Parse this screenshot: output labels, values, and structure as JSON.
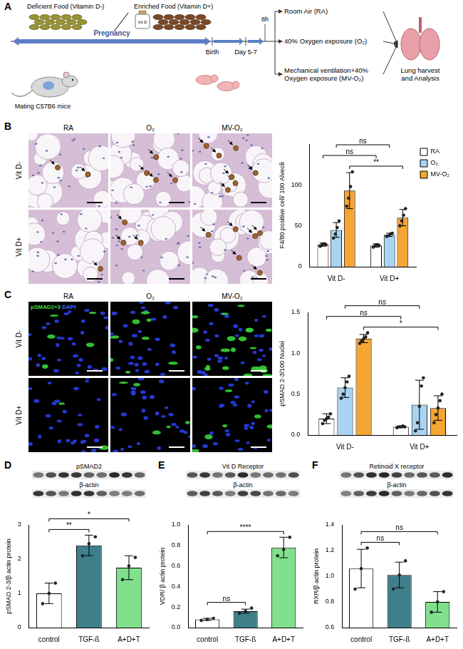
{
  "panel_labels": [
    "A",
    "B",
    "C",
    "D",
    "E",
    "F"
  ],
  "diagram": {
    "foods": [
      "Deficient Food (Vitamin D-)",
      "Enriched Food (Vitamin D+)"
    ],
    "supplement": "Vit D",
    "timeline": {
      "start": "Mating C57B6 mice",
      "period": "Pregnancy",
      "birth": "Birth",
      "day": "Day 5-7",
      "duration": "8h"
    },
    "exposures": [
      "Room Air (RA)",
      "40% Oxygen exposure (O₂)",
      "Mechanical ventilation+40% Oxygen exposure (MV-O₂)"
    ],
    "outcome": "Lung harvest and Analysis"
  },
  "micrographs": [
    {
      "columns": [
        "RA",
        "O₂",
        "MV-O₂"
      ],
      "rows": [
        "Vit D-",
        "Vit D+"
      ]
    },
    {
      "columns": [
        "RA",
        "O₂",
        "MV-O₂"
      ],
      "rows": [
        "Vit D-",
        "Vit D+"
      ],
      "stains": [
        {
          "text": "pSMAD2+3",
          "color": "#3ddc3d"
        },
        {
          "text": "DAPI",
          "color": "#4a6cff"
        }
      ]
    }
  ],
  "blots": [
    [
      "pSMAD2",
      "β-actin"
    ],
    [
      "Vit D Receptor",
      "β-actin"
    ],
    [
      "Retinoid X receptor",
      "β-actin"
    ]
  ],
  "chart_data": [
    {
      "type": "bar",
      "categories": [
        "Vit D-",
        "Vit D+"
      ],
      "y_label": "F4/80 positive cell/ 100 Alveoli",
      "ylim": [
        0,
        150
      ],
      "yticks": [
        0,
        50,
        100
      ],
      "grid": false,
      "legend": "right",
      "series": [
        {
          "name": "RA",
          "color": "#ffffff",
          "values": [
            27,
            26
          ],
          "errors": [
            2,
            2
          ],
          "points": [
            [
              25,
              27,
              28,
              27
            ],
            [
              24,
              26,
              27,
              26
            ]
          ]
        },
        {
          "name": "O₂",
          "color": "#a8d4f2",
          "values": [
            45,
            39
          ],
          "errors": [
            9,
            2
          ],
          "points": [
            [
              35,
              40,
              48,
              56
            ],
            [
              37,
              38,
              40,
              41
            ]
          ]
        },
        {
          "name": "MV-O₂",
          "color": "#f5a531",
          "values": [
            93,
            60
          ],
          "errors": [
            22,
            10
          ],
          "points": [
            [
              74,
              84,
              98,
              116
            ],
            [
              50,
              56,
              63,
              71
            ]
          ]
        }
      ],
      "annotations": [
        {
          "text": "**",
          "between": [
            [
              0,
              2
            ],
            [
              1,
              2
            ]
          ]
        },
        {
          "text": "ns",
          "between": [
            [
              0,
              0
            ],
            [
              1,
              0
            ]
          ]
        },
        {
          "text": "ns",
          "between": [
            [
              0,
              1
            ],
            [
              1,
              1
            ]
          ]
        }
      ]
    },
    {
      "type": "bar",
      "categories": [
        "Vit D-",
        "Vit D+"
      ],
      "y_label": "pSMAD 2-3/100 Nuclei",
      "ylim": [
        0,
        1.5
      ],
      "yticks": [
        {
          "value": 0,
          "label": "0.0"
        },
        0.5,
        {
          "value": 1,
          "label": "1.0"
        },
        1.5
      ],
      "grid": false,
      "series": [
        {
          "color": "#ffffff",
          "values": [
            0.2,
            0.1
          ],
          "errors": [
            0.06,
            0.01
          ],
          "points": [
            [
              0.14,
              0.18,
              0.2,
              0.22,
              0.26
            ],
            [
              0.09,
              0.1,
              0.1,
              0.11,
              0.1
            ]
          ]
        },
        {
          "color": "#a8d4f2",
          "values": [
            0.58,
            0.37
          ],
          "errors": [
            0.12,
            0.3
          ],
          "points": [
            [
              0.45,
              0.5,
              0.58,
              0.65,
              0.72
            ],
            [
              0.05,
              0.15,
              0.35,
              0.6,
              0.7
            ]
          ]
        },
        {
          "color": "#f5a531",
          "values": [
            1.18,
            0.33
          ],
          "errors": [
            0.05,
            0.15
          ],
          "points": [
            [
              1.12,
              1.15,
              1.18,
              1.2,
              1.25
            ],
            [
              0.15,
              0.25,
              0.33,
              0.42,
              0.5
            ]
          ]
        }
      ],
      "annotations": [
        {
          "text": "*",
          "between": [
            [
              0,
              2
            ],
            [
              1,
              2
            ]
          ]
        },
        {
          "text": "ns",
          "between": [
            [
              0,
              0
            ],
            [
              1,
              0
            ]
          ]
        },
        {
          "text": "ns",
          "between": [
            [
              0,
              1
            ],
            [
              1,
              1
            ]
          ]
        }
      ]
    },
    {
      "type": "bar",
      "categories": [
        "control",
        "TGF-ß",
        "A+D+T"
      ],
      "y_label": "pSMAD 2-3/β actin protein",
      "values": [
        1.0,
        2.4,
        1.75
      ],
      "colors": [
        "#ffffff",
        "#3f7f8a",
        "#80e08c"
      ],
      "errors": [
        0.3,
        0.3,
        0.35
      ],
      "points": [
        [
          0.7,
          1.0,
          1.3
        ],
        [
          2.1,
          2.45,
          2.65
        ],
        [
          1.4,
          1.8,
          2.05
        ]
      ],
      "ylim": [
        0,
        3
      ],
      "yticks": [
        0,
        1,
        2,
        3
      ],
      "grid": false,
      "annotations": [
        {
          "text": "**",
          "between": [
            [
              0,
              0
            ],
            [
              1,
              0
            ]
          ]
        },
        {
          "text": "*",
          "between": [
            [
              0,
              0
            ],
            [
              2,
              0
            ]
          ]
        }
      ]
    },
    {
      "type": "bar",
      "categories": [
        "control",
        "TGF-ß",
        "A+D+T"
      ],
      "y_label": "VDR/ β actin protein",
      "values": [
        0.08,
        0.16,
        0.78
      ],
      "colors": [
        "#ffffff",
        "#3f7f8a",
        "#80e08c"
      ],
      "errors": [
        0.01,
        0.02,
        0.1
      ],
      "points": [
        [
          0.07,
          0.08,
          0.09
        ],
        [
          0.14,
          0.16,
          0.19
        ],
        [
          0.7,
          0.76,
          0.88
        ]
      ],
      "ylim": [
        0,
        1
      ],
      "yticks": [
        {
          "value": 0,
          "label": "0.0"
        },
        0.2,
        0.4,
        0.6,
        0.8,
        {
          "value": 1,
          "label": "1.0"
        }
      ],
      "grid": false,
      "annotations": [
        {
          "text": "ns",
          "between": [
            [
              0,
              0
            ],
            [
              1,
              0
            ]
          ]
        },
        {
          "text": "****",
          "between": [
            [
              0,
              0
            ],
            [
              2,
              0
            ]
          ]
        }
      ]
    },
    {
      "type": "bar",
      "categories": [
        "control",
        "TGF-ß",
        "A+D+T"
      ],
      "y_label": "RXR/β actin protein",
      "values": [
        1.06,
        1.01,
        0.8
      ],
      "colors": [
        "#ffffff",
        "#3f7f8a",
        "#80e08c"
      ],
      "errors": [
        0.15,
        0.1,
        0.08
      ],
      "points": [
        [
          0.9,
          1.06,
          1.22
        ],
        [
          0.9,
          1.01,
          1.12
        ],
        [
          0.72,
          0.8,
          0.88
        ]
      ],
      "ylim": [
        0.6,
        1.4
      ],
      "yticks": [
        0.6,
        0.8,
        {
          "value": 1,
          "label": "1.0"
        },
        1.2,
        1.4
      ],
      "grid": false,
      "annotations": [
        {
          "text": "ns",
          "between": [
            [
              0,
              0
            ],
            [
              1,
              0
            ]
          ]
        },
        {
          "text": "ns",
          "between": [
            [
              0,
              0
            ],
            [
              2,
              0
            ]
          ]
        }
      ]
    }
  ]
}
